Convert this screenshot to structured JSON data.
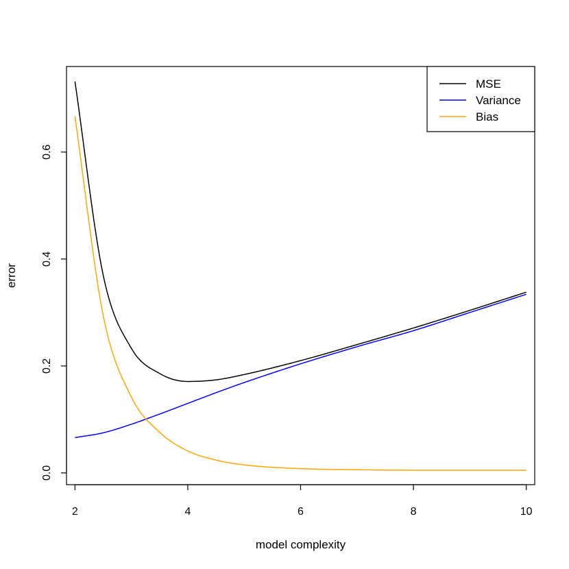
{
  "chart_data": {
    "type": "line",
    "xlabel": "model complexity",
    "ylabel": "error",
    "xlim": [
      1.85,
      10.15
    ],
    "ylim": [
      -0.022,
      0.76
    ],
    "xticks": [
      2,
      4,
      6,
      8,
      10
    ],
    "yticks": [
      0.0,
      0.2,
      0.4,
      0.6
    ],
    "xtick_labels": [
      "2",
      "4",
      "6",
      "8",
      "10"
    ],
    "ytick_labels": [
      "0.0",
      "0.2",
      "0.4",
      "0.6"
    ],
    "grid": false,
    "legend_position": "top-right",
    "x": [
      2,
      2.5,
      3,
      3.5,
      4,
      4.5,
      5,
      6,
      7,
      8,
      9,
      10
    ],
    "series": [
      {
        "name": "MSE",
        "color": "#000000",
        "values": [
          0.732,
          0.37,
          0.233,
          0.186,
          0.171,
          0.174,
          0.184,
          0.21,
          0.24,
          0.271,
          0.304,
          0.338
        ]
      },
      {
        "name": "Variance",
        "color": "#0000ff",
        "values": [
          0.066,
          0.075,
          0.091,
          0.11,
          0.13,
          0.15,
          0.169,
          0.204,
          0.236,
          0.266,
          0.3,
          0.334
        ]
      },
      {
        "name": "Bias",
        "color": "#ffa500",
        "values": [
          0.667,
          0.295,
          0.142,
          0.076,
          0.041,
          0.024,
          0.015,
          0.008,
          0.006,
          0.005,
          0.005,
          0.005
        ]
      }
    ]
  }
}
